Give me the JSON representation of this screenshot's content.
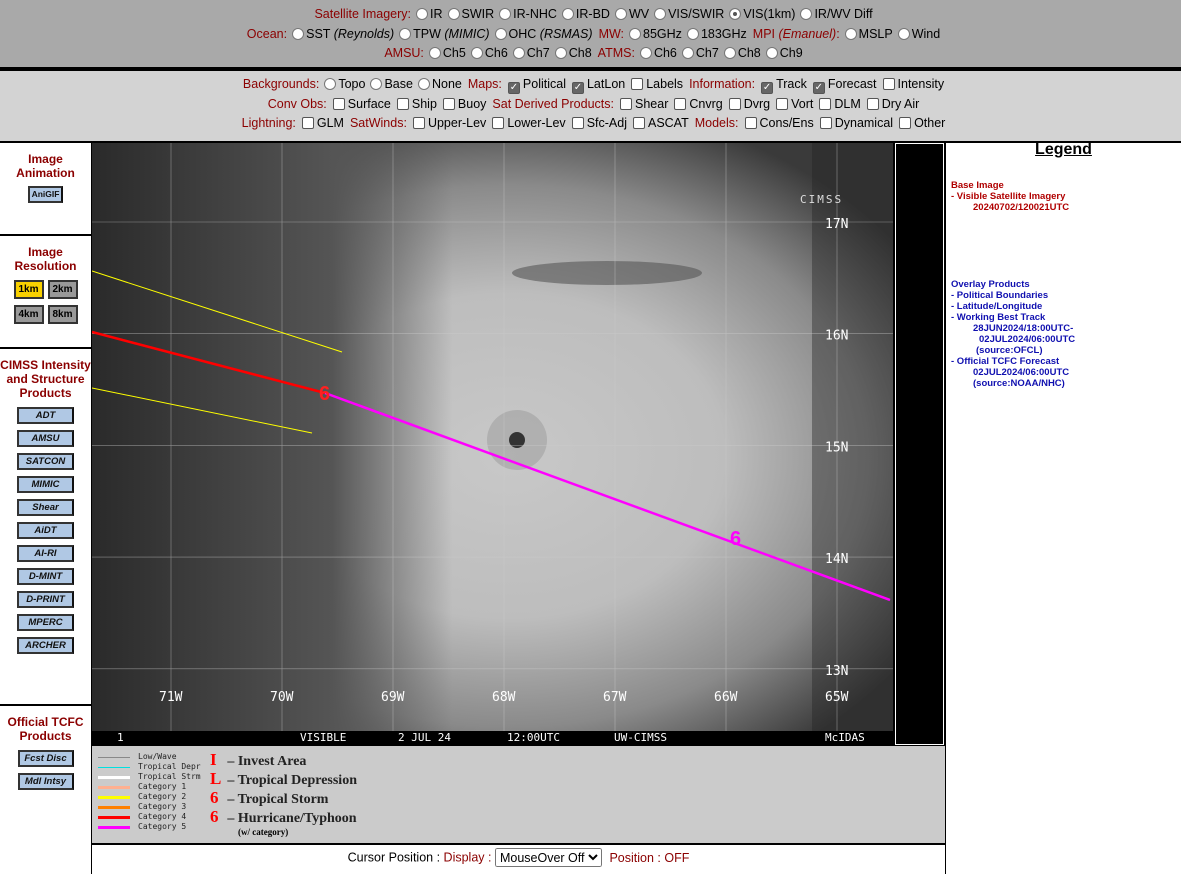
{
  "top": {
    "sat_label": "Satellite Imagery:",
    "sat_opts": [
      "IR",
      "SWIR",
      "IR-NHC",
      "IR-BD",
      "WV",
      "VIS/SWIR",
      "VIS(1km)",
      "IR/WV Diff"
    ],
    "sat_selected": "VIS(1km)",
    "ocean_label": "Ocean:",
    "ocean_opts": [
      {
        "a": "SST",
        "b": "(Reynolds)"
      },
      {
        "a": "TPW",
        "b": "(MIMIC)"
      },
      {
        "a": "OHC",
        "b": "(RSMAS)"
      }
    ],
    "mw_label": "MW:",
    "mw_opts": [
      "85GHz",
      "183GHz"
    ],
    "mpi_label": "MPI",
    "mpi_sub": "(Emanuel)",
    "mpi_opts": [
      "MSLP",
      "Wind"
    ],
    "amsu_label": "AMSU:",
    "amsu_opts": [
      "Ch5",
      "Ch6",
      "Ch7",
      "Ch8"
    ],
    "atms_label": "ATMS:",
    "atms_opts": [
      "Ch6",
      "Ch7",
      "Ch8",
      "Ch9"
    ]
  },
  "overlays": {
    "bg_label": "Backgrounds:",
    "bg_opts": [
      "Topo",
      "Base",
      "None"
    ],
    "maps_label": "Maps:",
    "maps_opts": [
      {
        "l": "Political",
        "on": true
      },
      {
        "l": "LatLon",
        "on": true
      },
      {
        "l": "Labels",
        "on": false
      }
    ],
    "info_label": "Information:",
    "info_opts": [
      {
        "l": "Track",
        "on": true
      },
      {
        "l": "Forecast",
        "on": true
      },
      {
        "l": "Intensity",
        "on": false
      }
    ],
    "conv_label": "Conv Obs:",
    "conv_opts": [
      "Surface",
      "Ship",
      "Buoy"
    ],
    "sdp_label": "Sat Derived Products:",
    "sdp_opts": [
      "Shear",
      "Cnvrg",
      "Dvrg",
      "Vort",
      "DLM",
      "Dry Air"
    ],
    "light_label": "Lightning:",
    "light_opts": [
      "GLM"
    ],
    "sw_label": "SatWinds:",
    "sw_opts": [
      "Upper-Lev",
      "Lower-Lev",
      "Sfc-Adj",
      "ASCAT"
    ],
    "models_label": "Models:",
    "models_opts": [
      "Cons/Ens",
      "Dynamical",
      "Other"
    ]
  },
  "left": {
    "anim_title": "Image Animation",
    "anim_btn": "AniGIF",
    "res_title": "Image Resolution",
    "res_opts": [
      "1km",
      "2km",
      "4km",
      "8km"
    ],
    "res_selected": "1km",
    "cimss_title": "CIMSS Intensity and Structure Products",
    "cimss_btns": [
      "ADT",
      "AMSU",
      "SATCON",
      "MIMIC",
      "Shear",
      "AiDT",
      "AI-RI",
      "D-MINT",
      "D-PRINT",
      "MPERC",
      "ARCHER"
    ],
    "tcfc_title": "Official TCFC Products",
    "tcfc_btns": [
      "Fcst Disc",
      "Mdl Intsy"
    ]
  },
  "map": {
    "lat_labels": [
      "17N",
      "16N",
      "15N",
      "14N",
      "13N"
    ],
    "lon_labels": [
      "71W",
      "70W",
      "69W",
      "68W",
      "67W",
      "66W",
      "65W"
    ],
    "banner": {
      "frame": "1",
      "channel": "VISIBLE",
      "date": "2 JUL 24",
      "time": "12:00UTC",
      "source": "UW-CIMSS",
      "software": "McIDAS"
    },
    "logo": "CIMSS",
    "colors": {
      "best_track": "#ff0000",
      "forecast": "#ff00ff",
      "cone": "#ffff00"
    }
  },
  "legend": {
    "title": "Legend",
    "base_head": "Base Image",
    "base_item": "-  Visible Satellite Imagery",
    "base_time": "20240702/120021UTC",
    "ov_head": "Overlay Products",
    "ov_items": [
      "-  Political Boundaries",
      "-  Latitude/Longitude",
      "-  Working Best Track"
    ],
    "bt_time1": "28JUN2024/18:00UTC-",
    "bt_time2": "02JUL2024/06:00UTC",
    "bt_src": "(source:OFCL)",
    "fc_item": "-  Official TCFC Forecast",
    "fc_time": "02JUL2024/06:00UTC",
    "fc_src": "(source:NOAA/NHC)"
  },
  "key": {
    "lines": [
      {
        "l": "Low/Wave",
        "c": "#888888"
      },
      {
        "l": "Tropical Depr",
        "c": "#00e0e0"
      },
      {
        "l": "Tropical Strm",
        "c": "#ffffff"
      },
      {
        "l": "Category 1",
        "c": "#ffb090"
      },
      {
        "l": "Category 2",
        "c": "#ffff00"
      },
      {
        "l": "Category 3",
        "c": "#ff8000"
      },
      {
        "l": "Category 4",
        "c": "#ff0000"
      },
      {
        "l": "Category 5",
        "c": "#ff00ff"
      }
    ],
    "symbols": [
      {
        "s": "I",
        "l": "– Invest Area"
      },
      {
        "s": "L",
        "l": "– Tropical Depression"
      },
      {
        "s": "6",
        "l": "– Tropical Storm"
      },
      {
        "s": "6",
        "l": "– Hurricane/Typhoon"
      }
    ],
    "cat_note": "(w/ category)"
  },
  "cursor": {
    "label": "Cursor Position :",
    "display_label": "Display :",
    "display_value": "MouseOver Off",
    "position_label": "Position : OFF"
  }
}
